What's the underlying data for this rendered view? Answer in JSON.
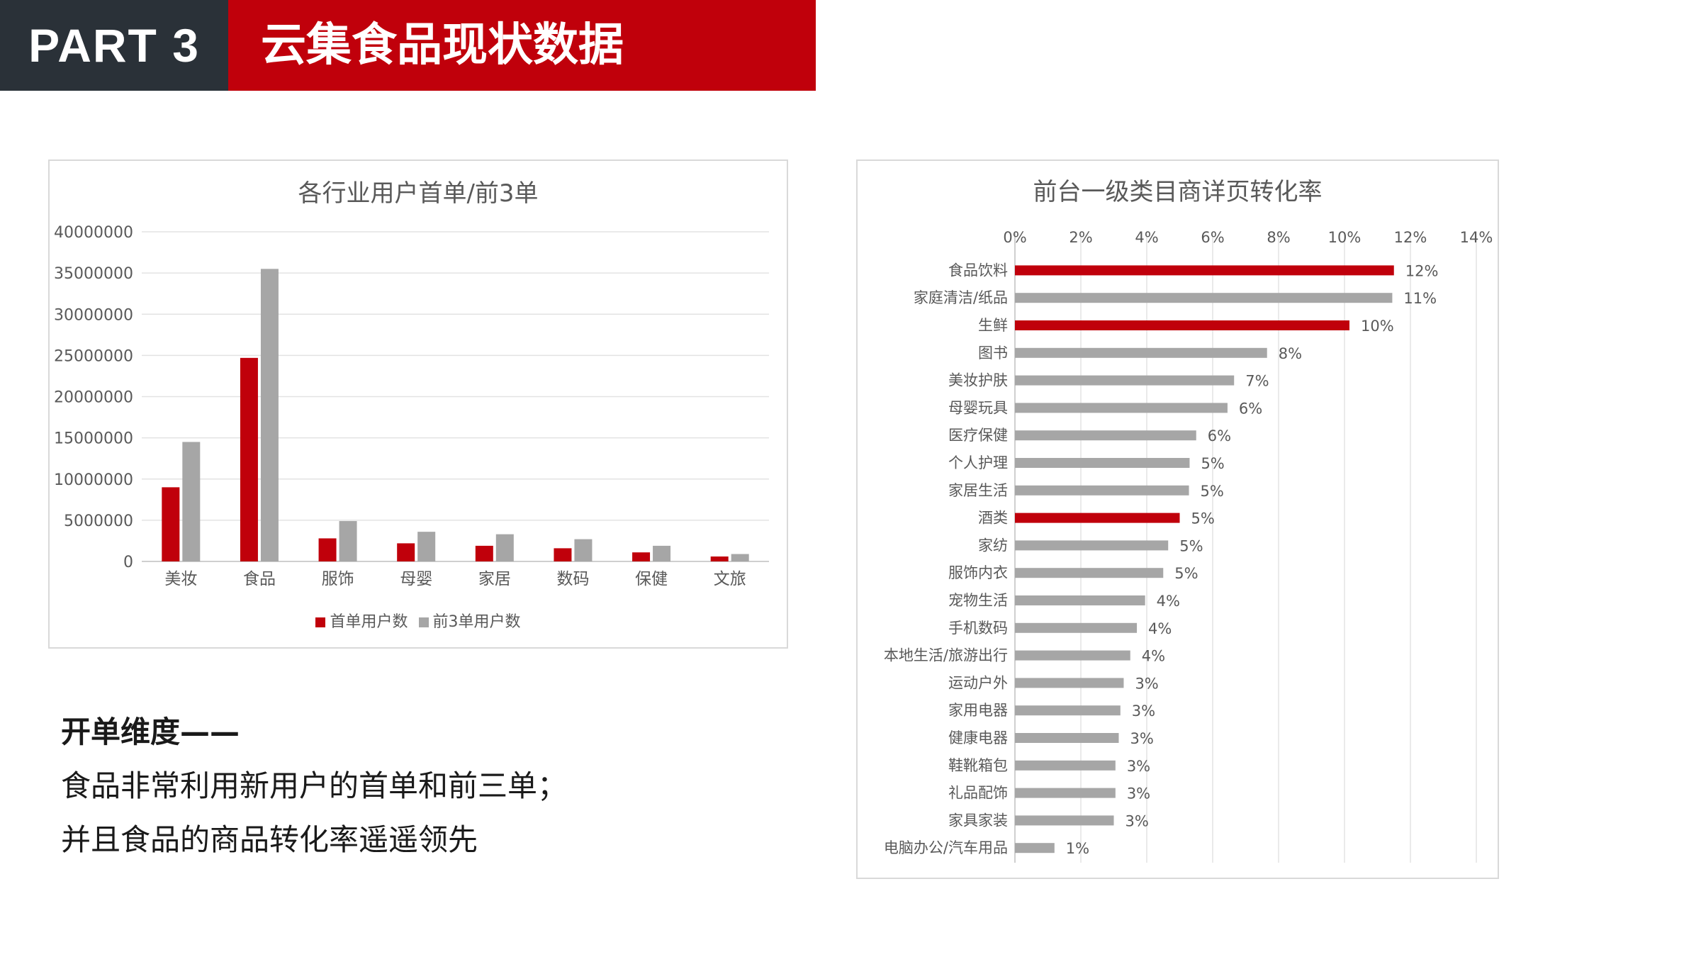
{
  "header": {
    "part_label": "PART 3",
    "title": "云集食品现状数据"
  },
  "colors": {
    "header_dark": "#2a3138",
    "accent_red": "#c0000b",
    "gray_bar": "#a6a6a6"
  },
  "note": {
    "title": "开单维度——",
    "line1": "食品非常利用新用户的首单和前三单；",
    "line2": "并且食品的商品转化率遥遥领先"
  },
  "chart_data": [
    {
      "type": "bar",
      "title": "各行业用户首单/前3单",
      "categories": [
        "美妆",
        "食品",
        "服饰",
        "母婴",
        "家居",
        "数码",
        "保健",
        "文旅"
      ],
      "series": [
        {
          "name": "首单用户数",
          "color": "#c0000b",
          "values": [
            9000000,
            24700000,
            2800000,
            2200000,
            1900000,
            1600000,
            1100000,
            600000
          ]
        },
        {
          "name": "前3单用户数",
          "color": "#a6a6a6",
          "values": [
            14500000,
            35500000,
            4900000,
            3600000,
            3300000,
            2700000,
            1900000,
            900000
          ]
        }
      ],
      "ylim": [
        0,
        40000000
      ],
      "yticks": [
        "0",
        "5000000",
        "10000000",
        "15000000",
        "20000000",
        "25000000",
        "30000000",
        "35000000",
        "40000000"
      ],
      "grid": true,
      "legend": "bottom"
    },
    {
      "type": "bar",
      "orientation": "horizontal",
      "title": "前台一级类目商详页转化率",
      "categories": [
        "食品饮料",
        "家庭清洁/纸品",
        "生鲜",
        "图书",
        "美妆护肤",
        "母婴玩具",
        "医疗保健",
        "个人护理",
        "家居生活",
        "酒类",
        "家纺",
        "服饰内衣",
        "宠物生活",
        "手机数码",
        "本地生活/旅游出行",
        "运动户外",
        "家用电器",
        "健康电器",
        "鞋靴箱包",
        "礼品配饰",
        "家具家装",
        "电脑办公/汽车用品"
      ],
      "values": [
        11.5,
        11.45,
        10.15,
        7.65,
        6.65,
        6.45,
        5.5,
        5.3,
        5.28,
        5.0,
        4.65,
        4.5,
        3.95,
        3.7,
        3.5,
        3.3,
        3.2,
        3.15,
        3.05,
        3.05,
        3.0,
        1.2
      ],
      "data_labels": [
        "12%",
        "11%",
        "10%",
        "8%",
        "7%",
        "6%",
        "6%",
        "5%",
        "5%",
        "5%",
        "5%",
        "5%",
        "4%",
        "4%",
        "4%",
        "3%",
        "3%",
        "3%",
        "3%",
        "3%",
        "3%",
        "1%"
      ],
      "highlight": [
        "食品饮料",
        "生鲜",
        "酒类"
      ],
      "xlim": [
        0,
        14
      ],
      "xticks": [
        "0%",
        "2%",
        "4%",
        "6%",
        "8%",
        "10%",
        "12%",
        "14%"
      ],
      "grid": true,
      "axis_position": "top"
    }
  ]
}
